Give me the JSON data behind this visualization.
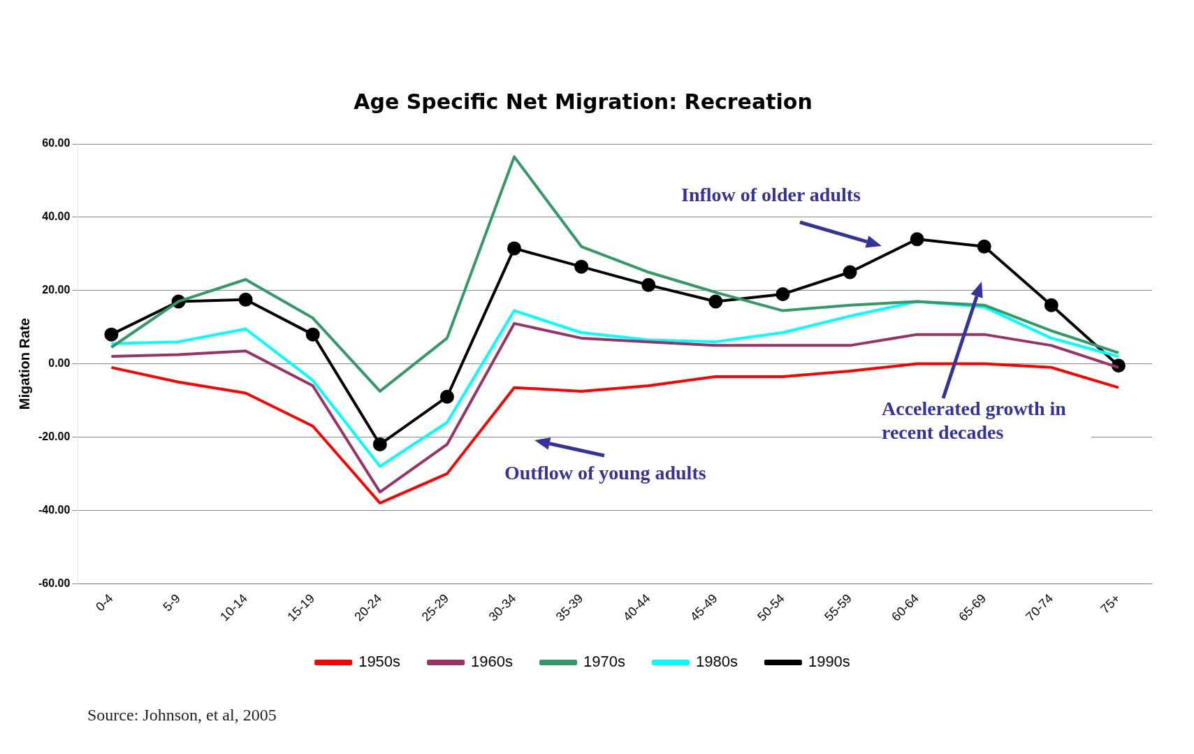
{
  "chart_data": {
    "type": "line",
    "title": "Age Specific Net Migration: Recreation",
    "ylabel": "Migation Rate",
    "categories": [
      "0-4",
      "5-9",
      "10-14",
      "15-19",
      "20-24",
      "25-29",
      "30-34",
      "35-39",
      "40-44",
      "45-49",
      "50-54",
      "55-59",
      "60-64",
      "65-69",
      "70-74",
      "75+"
    ],
    "series": [
      {
        "name": "1950s",
        "color": "#ff0000",
        "marker": "none",
        "values": [
          -1,
          -5,
          -8,
          -17,
          -38,
          -30,
          -6.5,
          -7.5,
          -6,
          -3.5,
          -3.5,
          -2,
          0,
          0,
          -1,
          -6.5
        ]
      },
      {
        "name": "1960s",
        "color": "#993366",
        "marker": "none",
        "values": [
          2,
          2.5,
          3.5,
          -6,
          -35,
          -22,
          11,
          7,
          6,
          5,
          5,
          5,
          8,
          8,
          5,
          -1
        ]
      },
      {
        "name": "1970s",
        "color": "#339966",
        "marker": "none",
        "values": [
          4.5,
          17,
          23,
          12.5,
          -7.5,
          7,
          56.5,
          32,
          25,
          19.5,
          14.5,
          16,
          17,
          16,
          9,
          3
        ]
      },
      {
        "name": "1980s",
        "color": "#00ffff",
        "marker": "none",
        "values": [
          5.5,
          6,
          9.5,
          -4.5,
          -28,
          -16,
          14.5,
          8.5,
          6.5,
          6,
          8.5,
          13,
          17,
          15.5,
          7,
          2
        ]
      },
      {
        "name": "1990s",
        "color": "#000000",
        "marker": "circle",
        "values": [
          8,
          17,
          17.5,
          8,
          -22,
          -9,
          31.5,
          26.5,
          21.5,
          17,
          19,
          25,
          34,
          32,
          16,
          -0.5
        ]
      }
    ],
    "ylim": [
      -60,
      60
    ],
    "yticks": [
      {
        "value": -60,
        "label": "-60.00"
      },
      {
        "value": -40,
        "label": "-40.00"
      },
      {
        "value": -20,
        "label": "-20.00"
      },
      {
        "value": 0,
        "label": "0.00"
      },
      {
        "value": 20,
        "label": "20.00"
      },
      {
        "value": 40,
        "label": "40.00"
      },
      {
        "value": 60,
        "label": "60.00"
      }
    ],
    "grid": "y",
    "legend": "bottom",
    "line_style": "solid",
    "annotations": [
      "Inflow of older adults",
      "Outflow of young adults",
      "Accelerated growth in recent decades",
      "Source: Johnson, et al, 2005"
    ]
  }
}
